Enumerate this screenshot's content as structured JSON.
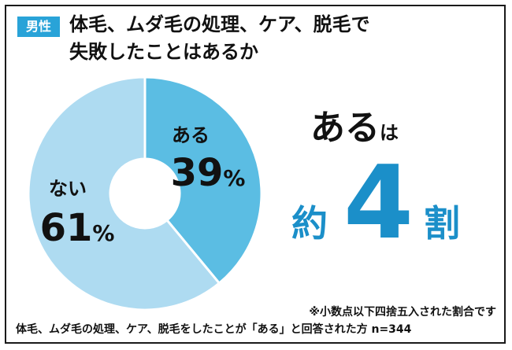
{
  "badge": "男性",
  "title_line1": "体毛、ムダ毛の処理、ケア、脱毛で",
  "title_line2": "失敗したことはあるか",
  "headline": {
    "main": "ある",
    "suffix": "は"
  },
  "ratio": {
    "prefix": "約",
    "number": "4",
    "suffix": "割"
  },
  "note": "※小数点以下四捨五入された割合です",
  "source": "体毛、ムダ毛の処理、ケア、脱毛をしたことが「ある」と回答された方 n=344",
  "colors": {
    "accent": "#29a3d8",
    "yes_slice": "#5bbde3",
    "no_slice": "#aedbf1",
    "ratio_text": "#1b8fc9"
  },
  "chart_data": {
    "type": "pie",
    "title": "体毛、ムダ毛の処理、ケア、脱毛で失敗したことはあるか",
    "categories": [
      "ある",
      "ない"
    ],
    "values": [
      39,
      61
    ],
    "labels": [
      "39%",
      "61%"
    ],
    "donut": true
  }
}
